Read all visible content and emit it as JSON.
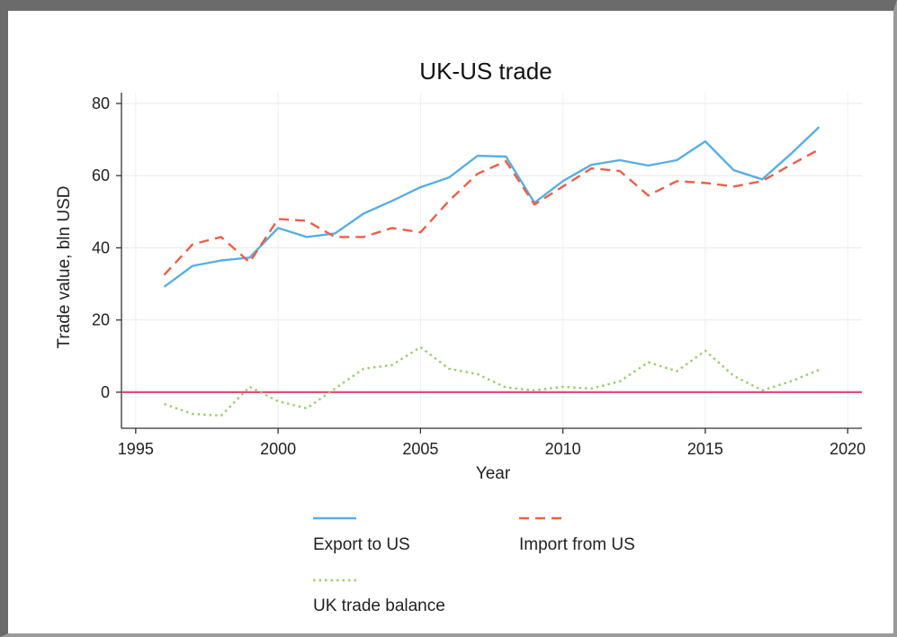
{
  "chart_data": {
    "type": "line",
    "title": "UK-US trade",
    "xlabel": "Year",
    "ylabel": "Trade value, bln USD",
    "xlim": [
      1994.5,
      2020.5
    ],
    "ylim": [
      -10,
      83
    ],
    "xticks": [
      1995,
      2000,
      2005,
      2010,
      2015,
      2020
    ],
    "yticks": [
      0,
      20,
      40,
      60,
      80
    ],
    "grid": true,
    "legend_position": "bottom",
    "x": [
      1996,
      1997,
      1998,
      1999,
      2000,
      2001,
      2002,
      2003,
      2004,
      2005,
      2006,
      2007,
      2008,
      2009,
      2010,
      2011,
      2012,
      2013,
      2014,
      2015,
      2016,
      2017,
      2018,
      2019
    ],
    "series": [
      {
        "name": "Export to US",
        "color": "#5aaee0",
        "style": "solid",
        "values": [
          29.2,
          35,
          36.5,
          37.3,
          45.5,
          43,
          44,
          49.5,
          53,
          56.8,
          59.5,
          65.5,
          65.3,
          52.5,
          58.5,
          63,
          64.3,
          62.8,
          64.3,
          69.5,
          61.5,
          59,
          66,
          73.5
        ]
      },
      {
        "name": "Import from US",
        "color": "#e8604a",
        "style": "dashed",
        "values": [
          32.5,
          41,
          43,
          36,
          48,
          47.5,
          43,
          43,
          45.5,
          44.3,
          53,
          60.5,
          64,
          52,
          57,
          62,
          61.3,
          54.5,
          58.5,
          58,
          57,
          58.5,
          63,
          67.3
        ]
      },
      {
        "name": "UK trade balance",
        "color": "#9ccb6e",
        "style": "dotted",
        "values": [
          -3.3,
          -6,
          -6.5,
          1.5,
          -2.5,
          -4.5,
          1,
          6.5,
          7.5,
          12.5,
          6.5,
          5,
          1.3,
          0.5,
          1.5,
          1,
          3,
          8.3,
          5.8,
          11.5,
          4.5,
          0.5,
          3,
          6.2
        ]
      }
    ],
    "reference_line": {
      "y": 0,
      "color": "#e0507a"
    }
  }
}
